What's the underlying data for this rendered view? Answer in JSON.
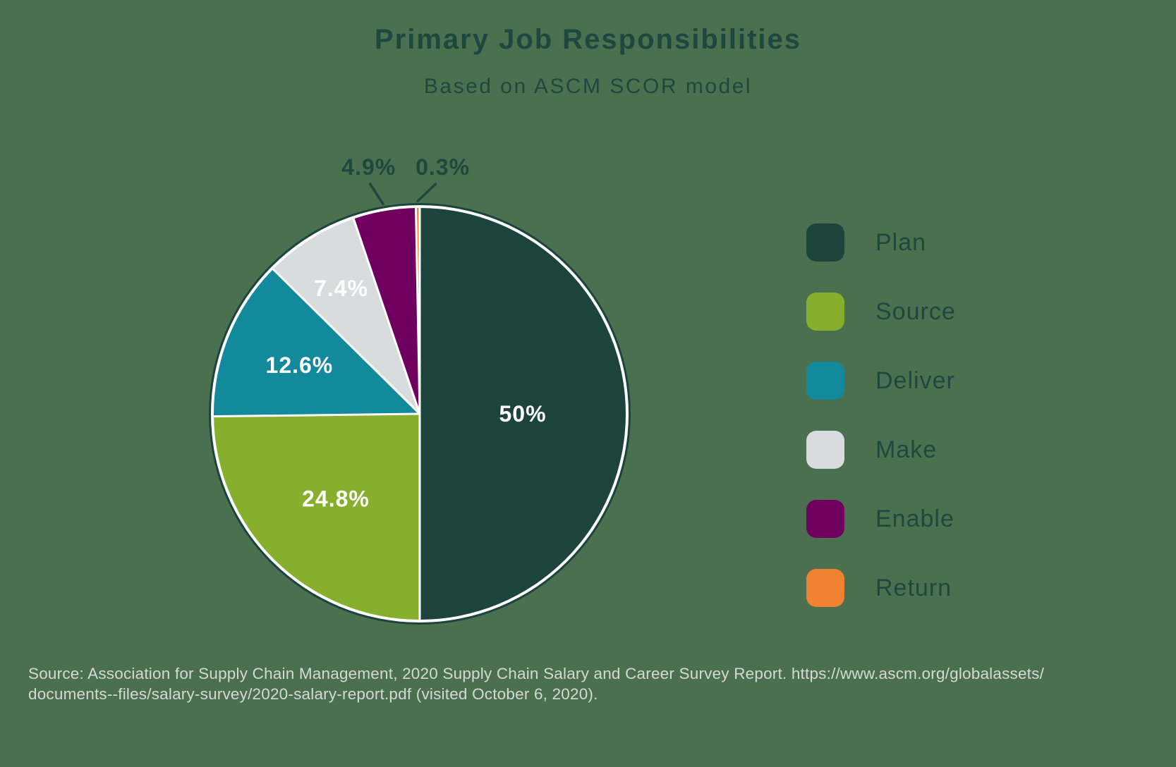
{
  "page": {
    "title": "Primary Job Responsibilities",
    "subtitle": "Based on ASCM SCOR model",
    "source_note_line1": "Source: Association for Supply Chain Management, 2020 Supply Chain Salary and Career Survey Report. https://www.ascm.org/globalassets/",
    "source_note_line2": "documents--files/salary-survey/2020-salary-report.pdf (visited October 6, 2020)."
  },
  "colors": {
    "background": "#4a7050",
    "heading_text": "#1e483e",
    "slice_label_text": "#ffffff",
    "callout_label_text": "#1e483e",
    "leader_line": "#1e483e",
    "source_text": "#d4d9d3",
    "pie_outline_dark": "#1c443c",
    "pie_divider_white": "#ffffff"
  },
  "chart_data": {
    "type": "pie",
    "title": "Primary Job Responsibilities",
    "subtitle": "Based on ASCM SCOR model",
    "unit": "percent",
    "direction": "clockwise",
    "start_angle": "12-oclock",
    "legend_position": "right",
    "categories": [
      "Plan",
      "Source",
      "Deliver",
      "Make",
      "Enable",
      "Return"
    ],
    "values": [
      50,
      24.8,
      12.6,
      7.4,
      4.9,
      0.3
    ],
    "slices": [
      {
        "label": "Plan",
        "value": 50,
        "display": "50%",
        "color": "#1c443c",
        "label_placement": "inside",
        "label_r": 0.5
      },
      {
        "label": "Source",
        "value": 24.8,
        "display": "24.8%",
        "color": "#87af2d",
        "label_placement": "inside",
        "label_r": 0.58
      },
      {
        "label": "Deliver",
        "value": 12.6,
        "display": "12.6%",
        "color": "#13899c",
        "label_placement": "inside",
        "label_r": 0.63
      },
      {
        "label": "Make",
        "value": 7.4,
        "display": "7.4%",
        "color": "#d8dcdd",
        "label_placement": "inside",
        "label_r": 0.72
      },
      {
        "label": "Enable",
        "value": 4.9,
        "display": "4.9%",
        "color": "#700060",
        "label_placement": "outside",
        "label_dx": -10
      },
      {
        "label": "Return",
        "value": 0.3,
        "display": "0.3%",
        "color": "#ee8231",
        "label_placement": "outside",
        "label_dx": 36
      }
    ]
  }
}
